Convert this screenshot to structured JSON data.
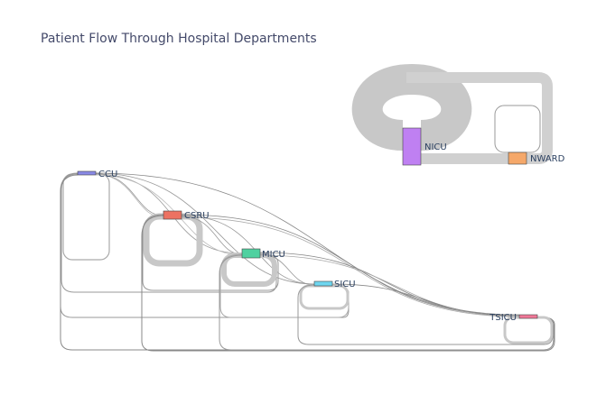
{
  "title": "Patient Flow Through Hospital Departments",
  "nodes": [
    {
      "id": "CCU",
      "label": "CCU",
      "color": "#8a8ae6"
    },
    {
      "id": "CSRU",
      "label": "CSRU",
      "color": "#ec7262"
    },
    {
      "id": "MICU",
      "label": "MICU",
      "color": "#4fd1a0"
    },
    {
      "id": "SICU",
      "label": "SICU",
      "color": "#6ed6ef"
    },
    {
      "id": "TSICU",
      "label": "TSICU",
      "color": "#f07898"
    },
    {
      "id": "NICU",
      "label": "NICU",
      "color": "#bf80f2"
    },
    {
      "id": "NWARD",
      "label": "NWARD",
      "color": "#f5a86a"
    }
  ],
  "colors": {
    "link": "#c8c8c8",
    "link_outline": "#888888",
    "title": "#444a6a"
  }
}
